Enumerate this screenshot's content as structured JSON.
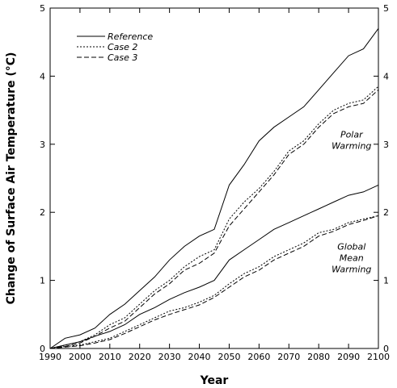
{
  "chart_data": {
    "type": "line",
    "title": "",
    "xlabel": "Year",
    "ylabel": "Change of Surface Air Temperature (°C)",
    "xlim": [
      1990,
      2100
    ],
    "ylim": [
      0,
      5
    ],
    "x_ticks": [
      1990,
      2000,
      2010,
      2020,
      2030,
      2040,
      2050,
      2060,
      2070,
      2080,
      2090,
      2100
    ],
    "y_ticks": [
      0,
      1,
      2,
      3,
      4,
      5
    ],
    "x": [
      1990,
      1995,
      2000,
      2005,
      2010,
      2015,
      2020,
      2025,
      2030,
      2035,
      2040,
      2045,
      2050,
      2055,
      2060,
      2065,
      2070,
      2075,
      2080,
      2085,
      2090,
      2095,
      2100
    ],
    "legend_position": "top-left",
    "grid": false,
    "series": [
      {
        "name": "Reference",
        "group": "Polar Warming",
        "style": "solid",
        "values": [
          0.0,
          0.15,
          0.2,
          0.3,
          0.5,
          0.65,
          0.85,
          1.05,
          1.3,
          1.5,
          1.65,
          1.75,
          2.4,
          2.7,
          3.05,
          3.25,
          3.4,
          3.55,
          3.8,
          4.05,
          4.3,
          4.4,
          4.7
        ]
      },
      {
        "name": "Case 2",
        "group": "Polar Warming",
        "style": "dotted",
        "values": [
          0.0,
          0.05,
          0.1,
          0.2,
          0.35,
          0.45,
          0.65,
          0.85,
          1.0,
          1.2,
          1.35,
          1.45,
          1.9,
          2.15,
          2.35,
          2.6,
          2.9,
          3.05,
          3.3,
          3.5,
          3.6,
          3.65,
          3.85
        ]
      },
      {
        "name": "Case 3",
        "group": "Polar Warming",
        "style": "dashed",
        "values": [
          0.0,
          0.03,
          0.08,
          0.18,
          0.3,
          0.4,
          0.6,
          0.8,
          0.95,
          1.15,
          1.25,
          1.4,
          1.8,
          2.05,
          2.3,
          2.55,
          2.85,
          3.0,
          3.25,
          3.45,
          3.55,
          3.6,
          3.8
        ]
      },
      {
        "name": "Reference",
        "group": "Global Mean Warming",
        "style": "solid",
        "values": [
          0.0,
          0.05,
          0.1,
          0.18,
          0.25,
          0.35,
          0.5,
          0.6,
          0.72,
          0.82,
          0.9,
          1.0,
          1.3,
          1.45,
          1.6,
          1.75,
          1.85,
          1.95,
          2.05,
          2.15,
          2.25,
          2.3,
          2.4
        ]
      },
      {
        "name": "Case 2",
        "group": "Global Mean Warming",
        "style": "dotted",
        "values": [
          0.0,
          0.03,
          0.05,
          0.1,
          0.15,
          0.25,
          0.35,
          0.45,
          0.55,
          0.6,
          0.68,
          0.78,
          0.95,
          1.1,
          1.2,
          1.35,
          1.45,
          1.55,
          1.7,
          1.75,
          1.85,
          1.9,
          1.95
        ]
      },
      {
        "name": "Case 3",
        "group": "Global Mean Warming",
        "style": "dashed",
        "values": [
          0.0,
          0.02,
          0.04,
          0.08,
          0.13,
          0.22,
          0.32,
          0.42,
          0.5,
          0.57,
          0.64,
          0.75,
          0.9,
          1.05,
          1.15,
          1.3,
          1.4,
          1.5,
          1.65,
          1.72,
          1.82,
          1.88,
          1.95
        ]
      }
    ],
    "annotations": [
      {
        "lines": [
          "Polar",
          "Warming"
        ],
        "x": 2091,
        "y": 3.1
      },
      {
        "lines": [
          "Global",
          "Mean",
          "Warming"
        ],
        "x": 2091,
        "y": 1.45
      }
    ]
  }
}
